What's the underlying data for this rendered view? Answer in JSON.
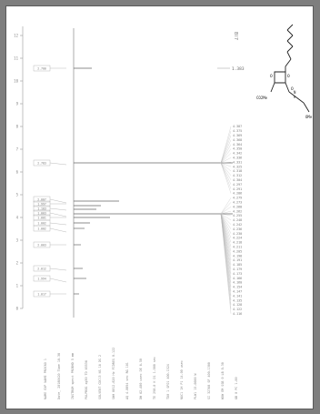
{
  "spectrum": {
    "header_right": "Bl7",
    "reference_peak": "1.383",
    "peak_list": [
      "4.387",
      "4.375",
      "4.369",
      "4.368",
      "4.364",
      "4.350",
      "4.342",
      "4.336",
      "4.331",
      "4.325",
      "4.318",
      "4.312",
      "4.304",
      "4.297",
      "4.291",
      "4.286",
      "4.279",
      "4.273",
      "4.268",
      "4.262",
      "4.255",
      "4.248",
      "4.242",
      "4.236",
      "4.230",
      "4.224",
      "4.218",
      "4.211",
      "4.205",
      "4.198",
      "4.191",
      "4.185",
      "4.179",
      "4.173",
      "4.166",
      "4.160",
      "4.154",
      "4.147",
      "4.141",
      "4.135",
      "4.128",
      "4.122",
      "4.116"
    ],
    "integral_values": [
      "2.700",
      "2.783",
      "2.007",
      "1.997",
      "1.103",
      "1.003",
      "1.001",
      "1.002",
      "1.002",
      "2.003",
      "2.012",
      "1.994",
      "1.017"
    ],
    "ppm_ticks": [
      "12",
      "11",
      "10",
      "9",
      "8",
      "7",
      "6",
      "5",
      "4",
      "3",
      "2",
      "1",
      "0"
    ],
    "structure_labels": {
      "ester": "CO2Me",
      "amide_nh": "H",
      "amide_n": "N",
      "oxo_1": "O",
      "oxo_2": "O",
      "oxo_3": "O",
      "methoxy": "OMe"
    },
    "parameters": [
      "NAME   EXP NAME   PROCNO  1",
      "Date_  20180420   Time  10.38",
      "INSTRUM  spect   PROBHD  5 mm",
      "PULPROG  zg30   TD  65536",
      "SOLVENT  CDCl3   NS  16   DS  2",
      "SWH  8012.820 Hz   FIDRES  0.122",
      "AQ  4.0894 sec   RG  101",
      "DW  62.400 usec   DE  6.50",
      "TE  298.0 K   D1  1.000 sec",
      "TD0  1   SFO1  400.1324",
      "NUC1  1H   P1  14.00 usec",
      "PLW1  15.0000 W",
      "SI  32768   SF  400.1300",
      "WDW  EM   SSB  0   LB  0.30",
      "GB  0   PC  1.00"
    ]
  }
}
